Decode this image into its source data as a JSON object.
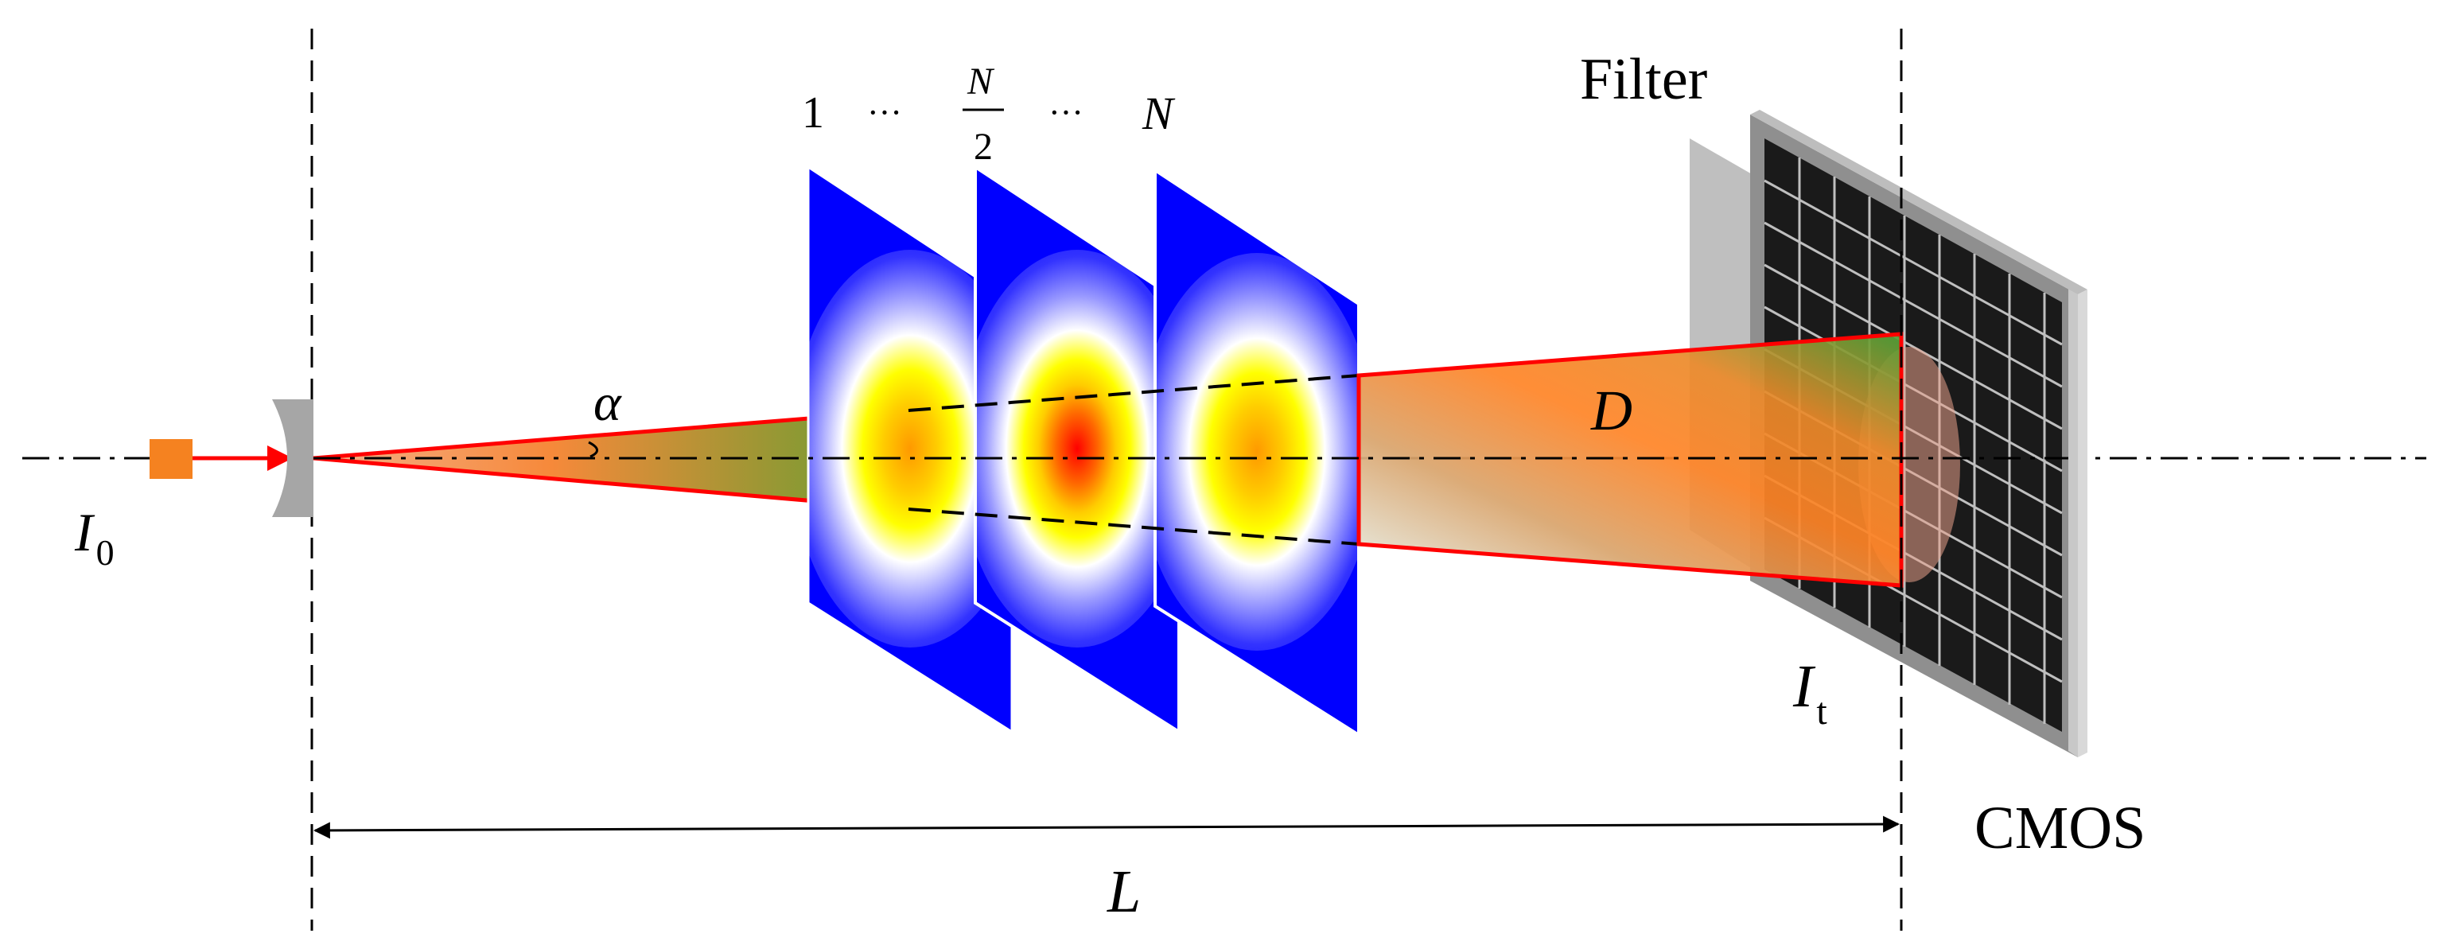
{
  "labels": {
    "input_intensity_symbol": "I",
    "input_intensity_subscript": "0",
    "divergence_angle": "α",
    "screen_first": "1",
    "ellipsis_left": "···",
    "screen_mid_numerator": "N",
    "screen_mid_denominator": "2",
    "ellipsis_right": "···",
    "screen_last": "N",
    "filter": "Filter",
    "beam_diameter": "D",
    "output_intensity_symbol": "I",
    "output_intensity_subscript": "t",
    "sensor": "CMOS",
    "path_length": "L"
  },
  "colors": {
    "laser_source": "#f58220",
    "beam_outline": "#ff0000",
    "phase_screen_outer": "#0000ff",
    "phase_screen_core": "#ff0000",
    "lens": "#a6a6a6",
    "filter_panel": "#bfbfbf",
    "sensor_frame": "#999999"
  },
  "icons": {
    "source": "laser-source-square",
    "lens": "diverging-lens-shape",
    "screens": "phase-screen-panels",
    "sensor": "cmos-grid-panel"
  }
}
